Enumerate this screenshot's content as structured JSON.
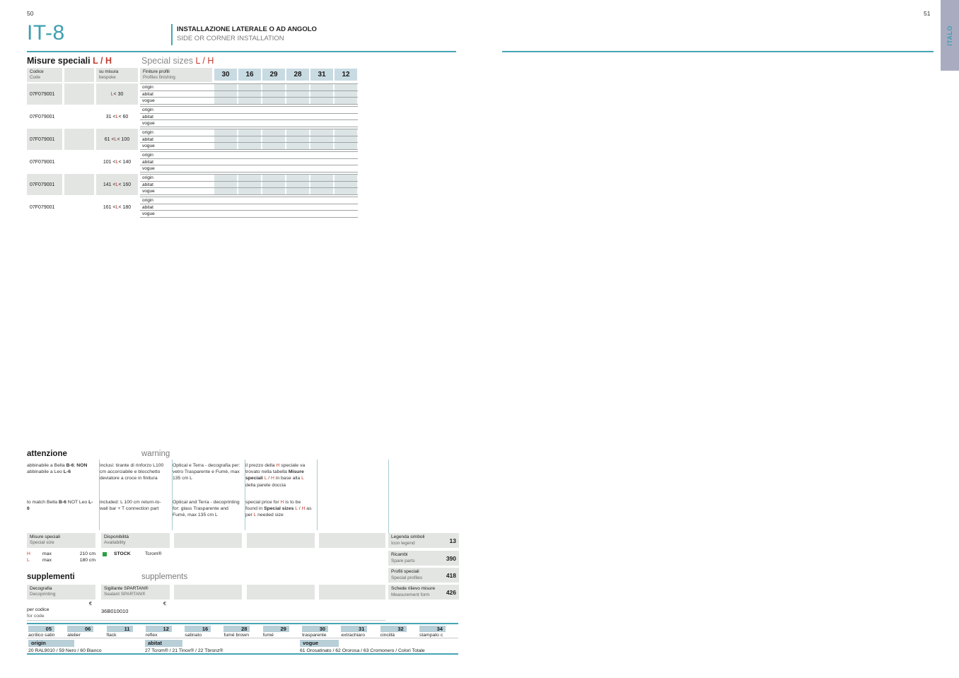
{
  "colors": {
    "teal": "#46a5b4",
    "red": "#c13b2e",
    "badge_blue": "#c9dbe2",
    "legend_blue": "#b9cfd8",
    "box_gray": "#e3e5e3",
    "tab_lavender": "#a9acc1",
    "stock_green": "#2f9e41"
  },
  "page": {
    "left_number": "50",
    "right_number": "51",
    "side_tab_label": "ITALO"
  },
  "header": {
    "model": "IT-8",
    "title_it": "INSTALLAZIONE LATERALE O AD ANGOLO",
    "title_en": "SIDE OR CORNER INSTALLATION"
  },
  "special_sizes": {
    "heading_it": [
      {
        "t": "Misure speciali ",
        "c": "bold"
      },
      {
        "t": "L / H",
        "c": "redbold"
      }
    ],
    "heading_en": [
      {
        "t": "Special sizes "
      },
      {
        "t": "L / H",
        "c": "red"
      }
    ]
  },
  "table": {
    "headers": {
      "codice_it": "Codice",
      "codice_en": "Code",
      "su_misura_it": "su misura",
      "su_misura_en": "bespoke",
      "finiture_it": "Finiture profili",
      "finiture_en": "Profiles finishing",
      "columns": [
        "30",
        "16",
        "29",
        "28",
        "31",
        "12"
      ]
    },
    "finishes": [
      "origin",
      "abitat",
      "vogue"
    ],
    "rows": [
      {
        "code": "07F079001",
        "shaded": true,
        "size": [
          {
            "t": "L",
            "c": "red"
          },
          {
            "t": " < 30"
          }
        ]
      },
      {
        "code": "07F079001",
        "shaded": false,
        "size": [
          {
            "t": "31 < "
          },
          {
            "t": "L",
            "c": "red"
          },
          {
            "t": " < 60"
          }
        ]
      },
      {
        "code": "07F079001",
        "shaded": true,
        "size": [
          {
            "t": "61 < "
          },
          {
            "t": "L",
            "c": "red"
          },
          {
            "t": " < 100"
          }
        ]
      },
      {
        "code": "07F079001",
        "shaded": false,
        "size": [
          {
            "t": "101 < "
          },
          {
            "t": "L",
            "c": "red"
          },
          {
            "t": " < 140"
          }
        ]
      },
      {
        "code": "07F079001",
        "shaded": true,
        "size": [
          {
            "t": "141 < "
          },
          {
            "t": "L",
            "c": "red"
          },
          {
            "t": " < 160"
          }
        ]
      },
      {
        "code": "07F079001",
        "shaded": false,
        "size": [
          {
            "t": "161 < "
          },
          {
            "t": "L",
            "c": "red"
          },
          {
            "t": " < 180"
          }
        ]
      }
    ]
  },
  "warnings": {
    "heading_it": "attenzione",
    "heading_en": "warning",
    "cols": [
      {
        "it": [
          {
            "t": "abbinabile a Bella "
          },
          {
            "t": "B-6",
            "c": "bold"
          },
          {
            "t": "; "
          },
          {
            "t": "NON",
            "c": "bold"
          },
          {
            "t": " abbinabile a Leo "
          },
          {
            "t": "L-6",
            "c": "bold"
          }
        ],
        "en": [
          {
            "t": "to match Bella "
          },
          {
            "t": "B-6",
            "c": "bold"
          },
          {
            "t": " NOT Leo "
          },
          {
            "t": "L-6",
            "c": "bold"
          }
        ]
      },
      {
        "it": [
          {
            "t": "inclusi: tirante di rinforzo L100 cm accorciabile e blocchetto deviatore a croce in finitura"
          }
        ],
        "en": [
          {
            "t": "included: L 100 cm  return-to-wall bar + T connection part"
          }
        ]
      },
      {
        "it": [
          {
            "t": "Optical e Terra - decografia per: vetro Trasparente e Fumè, max 135 cm L"
          }
        ],
        "en": [
          {
            "t": "Optical and Terra - decoprinting for: glass Trasparente and Fumè, max 135 cm L"
          }
        ]
      },
      {
        "it": [
          {
            "t": "il prezzo della "
          },
          {
            "t": "H",
            "c": "red"
          },
          {
            "t": " speciale va trovato nella tabella "
          },
          {
            "t": "Misure speciali",
            "c": "bold"
          },
          {
            "t": " "
          },
          {
            "t": "L",
            "c": "red"
          },
          {
            "t": " / "
          },
          {
            "t": "H",
            "c": "red"
          },
          {
            "t": " in base alla "
          },
          {
            "t": "L",
            "c": "red"
          },
          {
            "t": " della parete doccia"
          }
        ],
        "en": [
          {
            "t": "special price for "
          },
          {
            "t": "H",
            "c": "red"
          },
          {
            "t": " is to be found in "
          },
          {
            "t": "Special sizes",
            "c": "bold"
          },
          {
            "t": " "
          },
          {
            "t": "L",
            "c": "red"
          },
          {
            "t": " / "
          },
          {
            "t": "H",
            "c": "red"
          },
          {
            "t": " as per "
          },
          {
            "t": "L",
            "c": "red"
          },
          {
            "t": " needed size"
          }
        ]
      }
    ]
  },
  "info": {
    "misure": {
      "label_it": "Misure speciali",
      "label_en": "Special size",
      "h_axis": "H",
      "h_mid": "max",
      "h_val": "210 cm",
      "l_axis": "L",
      "l_mid": "max",
      "l_val": "180 cm"
    },
    "disponibilita": {
      "label_it": "Disponibilità",
      "label_en": "Availability",
      "stock": "STOCK",
      "brand": "Tcrom®"
    }
  },
  "references": [
    {
      "it": "Legenda simboli",
      "en": "Icon legend",
      "page": "13"
    },
    {
      "it": "Ricambi",
      "en": "Spare parts",
      "page": "390"
    },
    {
      "it": "Profili speciali",
      "en": "Special profiles",
      "page": "418"
    },
    {
      "it": "Schede rilievo misure",
      "en": "Measurement form",
      "page": "426"
    }
  ],
  "supplements": {
    "heading_it": "supplementi",
    "heading_en": "supplements",
    "col1_label_it": "Decografia",
    "col1_label_en": "Decoprinting",
    "col2_label_it": "Sigillante SPARTAN®",
    "col2_label_en": "Sealant SPARTAN®",
    "currency1": "€",
    "currency2": "€",
    "row_label_it": "per codice",
    "row_label_en": "for code",
    "col2_value": "36B010010"
  },
  "finish_legend": {
    "codes": [
      {
        "code": "05",
        "name": "acrilico satin"
      },
      {
        "code": "06",
        "name": "atelier"
      },
      {
        "code": "11",
        "name": "flack"
      },
      {
        "code": "12",
        "name": "reflex"
      },
      {
        "code": "16",
        "name": "satinato"
      },
      {
        "code": "28",
        "name": "fumé brown"
      },
      {
        "code": "29",
        "name": "fumé"
      },
      {
        "code": "30",
        "name": "trasparente"
      },
      {
        "code": "31",
        "name": "extrachiaro"
      },
      {
        "code": "32",
        "name": "cincillà"
      },
      {
        "code": "34",
        "name": "stampato c"
      }
    ],
    "series": [
      {
        "name": "origin",
        "colors": "20 RAL9010 / 59 Nero / 60 Bianco"
      },
      {
        "name": "abitat",
        "colors": "27 Tcrom® / 21 Tinox® / 22 Tbronz®"
      },
      {
        "name": "vogue",
        "colors": "61 Orosatinato / 62 Ororosa / 63 Cromonero / Colori Totale"
      }
    ]
  }
}
